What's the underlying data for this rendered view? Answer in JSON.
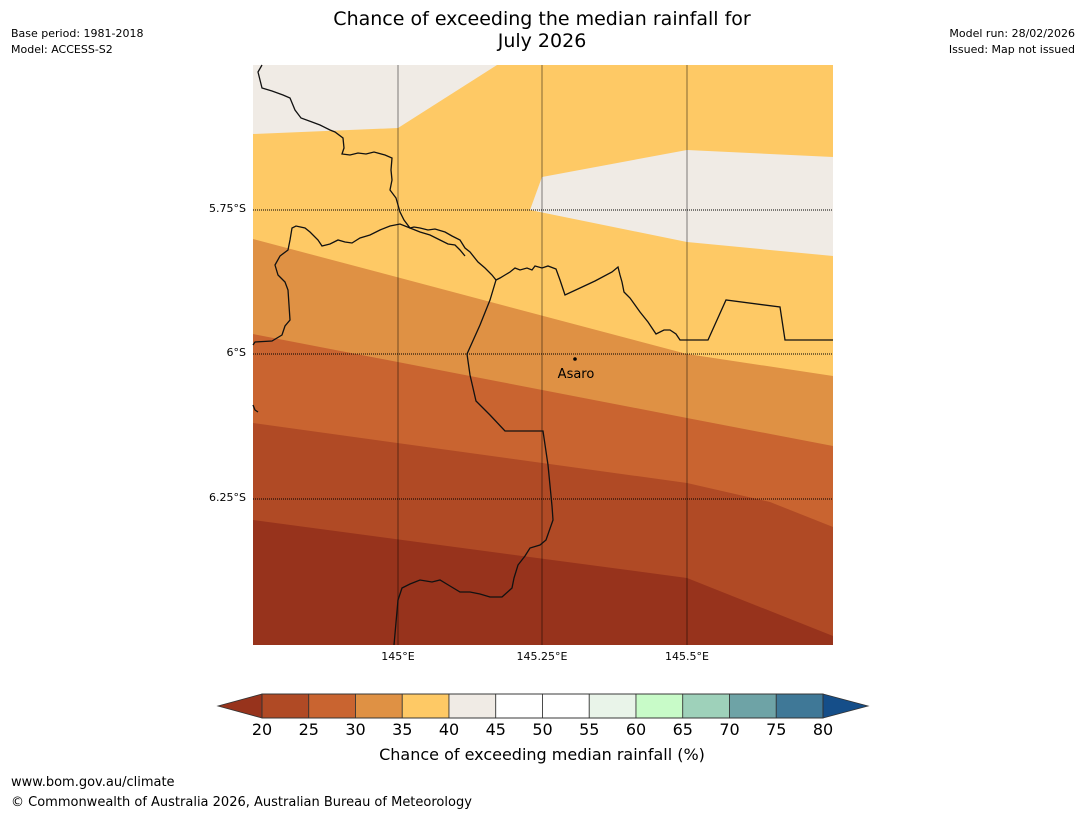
{
  "header": {
    "title_line1": "Chance of exceeding the median rainfall for",
    "title_line2": "July 2026",
    "base_period": "Base period: 1981-2018",
    "model": "Model: ACCESS-S2",
    "model_run": "Model run: 28/02/2026",
    "issued": "Issued: Map not issued"
  },
  "map": {
    "lon_range": [
      144.77,
      145.7
    ],
    "lat_range": [
      -5.53,
      -6.53
    ],
    "lat_ticks": [
      {
        "value": -5.75,
        "label": "5.75°S"
      },
      {
        "value": -6.0,
        "label": "6°S"
      },
      {
        "value": -6.25,
        "label": "6.25°S"
      }
    ],
    "lon_ticks": [
      {
        "value": 145.0,
        "label": "145°E"
      },
      {
        "value": 145.25,
        "label": "145.25°E"
      },
      {
        "value": 145.5,
        "label": "145.5°E"
      }
    ],
    "places": [
      {
        "name": "Asaro",
        "lon": 145.3,
        "lat": -6.01
      }
    ],
    "bands": [
      {
        "range": "20-25 or below",
        "color": "#97331c"
      },
      {
        "range": "20-25",
        "color": "#b04a25"
      },
      {
        "range": "25-30",
        "color": "#c96430"
      },
      {
        "range": "30-35",
        "color": "#df9144"
      },
      {
        "range": "35-40",
        "color": "#fec965"
      },
      {
        "range": "40-45",
        "color": "#f0ebe5"
      }
    ]
  },
  "colorbar": {
    "label": "Chance of exceeding median rainfall (%)",
    "ticks": [
      "20",
      "25",
      "30",
      "35",
      "40",
      "45",
      "50",
      "55",
      "60",
      "65",
      "70",
      "75",
      "80"
    ],
    "under_color": "#97331c",
    "over_color": "#154e89",
    "colors": [
      "#b04a25",
      "#c96430",
      "#df9144",
      "#fec965",
      "#f0ebe5",
      "#ffffff",
      "#ffffff",
      "#e9f4e9",
      "#c8fbc8",
      "#9ed1ba",
      "#6ea3a6",
      "#3f7897"
    ]
  },
  "footer": {
    "url": "www.bom.gov.au/climate",
    "copyright": "© Commonwealth of Australia 2026, Australian Bureau of Meteorology"
  }
}
